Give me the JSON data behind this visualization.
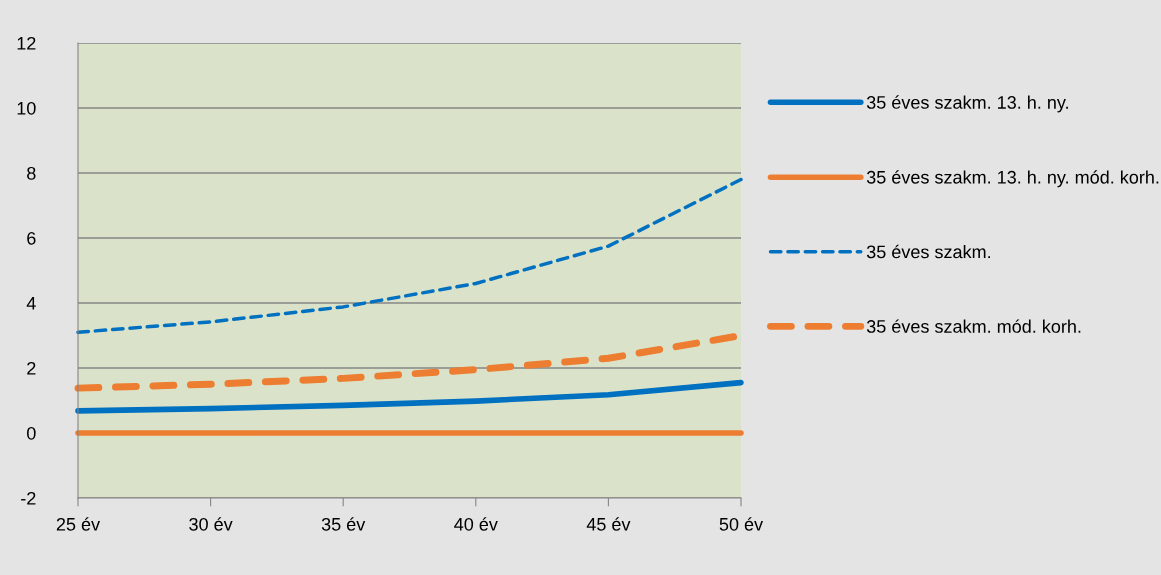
{
  "chart_data": {
    "type": "line",
    "categories": [
      "25 év",
      "30 év",
      "35 év",
      "40 év",
      "45 év",
      "50 év"
    ],
    "series": [
      {
        "name": "35 éves szakm. 13. h. ny.",
        "color": "#0070c0",
        "line_style": "solid",
        "values": [
          0.68,
          0.75,
          0.85,
          0.98,
          1.18,
          1.55
        ]
      },
      {
        "name": "35 éves szakm. 13. h. ny. mód. korh.",
        "color": "#ed7d31",
        "line_style": "solid",
        "values": [
          0,
          0,
          0,
          0,
          0,
          0
        ]
      },
      {
        "name": "35 éves szakm.",
        "color": "#0070c0",
        "line_style": "dashed",
        "values": [
          3.1,
          3.42,
          3.88,
          4.6,
          5.75,
          7.8
        ]
      },
      {
        "name": "35 éves szakm. mód. korh.",
        "color": "#ed7d31",
        "line_style": "dashed",
        "values": [
          1.38,
          1.5,
          1.68,
          1.95,
          2.3,
          3.0
        ]
      }
    ],
    "ylim": [
      -2,
      12
    ],
    "yticks": [
      -2,
      0,
      2,
      4,
      6,
      8,
      10,
      12
    ],
    "grid": "y",
    "legend": "right",
    "marker": "none"
  }
}
